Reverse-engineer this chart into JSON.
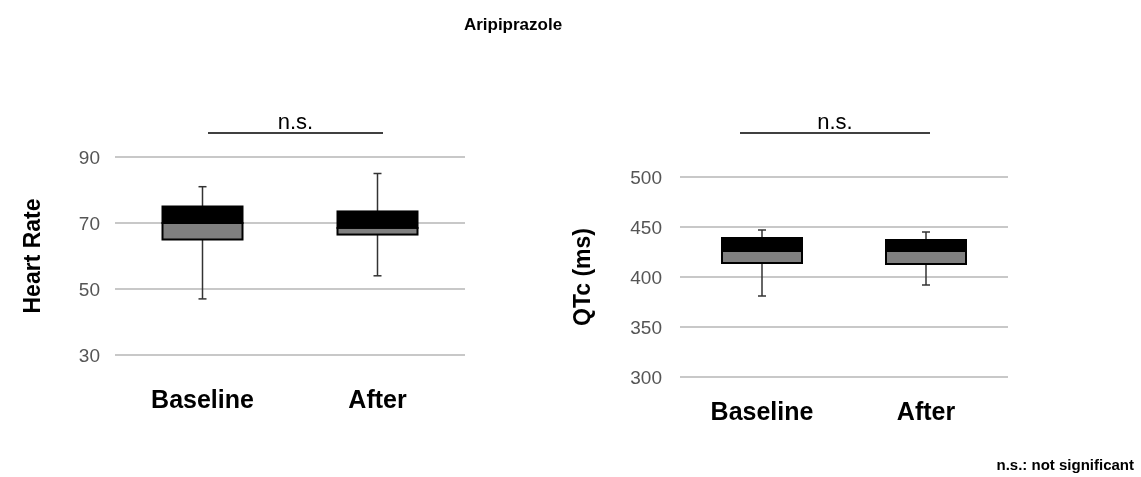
{
  "chart_data": [
    {
      "type": "other",
      "title": "Aripiprazole"
    },
    {
      "type": "box",
      "ylabel": "Heart Rate",
      "categories": [
        "Baseline",
        "After"
      ],
      "ylim": [
        30,
        90
      ],
      "yticks": [
        30,
        50,
        70,
        90
      ],
      "grid": "y",
      "annotations": [
        "n.s."
      ],
      "series": [
        {
          "color": "#000000",
          "boxes": [
            {
              "low": 47,
              "q1": 65,
              "median": 70,
              "q3": 75,
              "high": 81
            },
            {
              "low": 54,
              "q1": 66.5,
              "median": 68.5,
              "q3": 73.5,
              "high": 85
            }
          ]
        }
      ]
    },
    {
      "type": "box",
      "ylabel": "QTc (ms)",
      "categories": [
        "Baseline",
        "After"
      ],
      "ylim": [
        300,
        500
      ],
      "yticks": [
        300,
        350,
        400,
        450,
        500
      ],
      "grid": "y",
      "annotations": [
        "n.s.",
        "n.s.: not significant"
      ],
      "series": [
        {
          "color": "#000000",
          "boxes": [
            {
              "low": 381,
              "q1": 414,
              "median": 426,
              "q3": 439,
              "high": 447
            },
            {
              "low": 392,
              "q1": 413,
              "median": 426,
              "q3": 437,
              "high": 445
            }
          ]
        }
      ]
    }
  ]
}
